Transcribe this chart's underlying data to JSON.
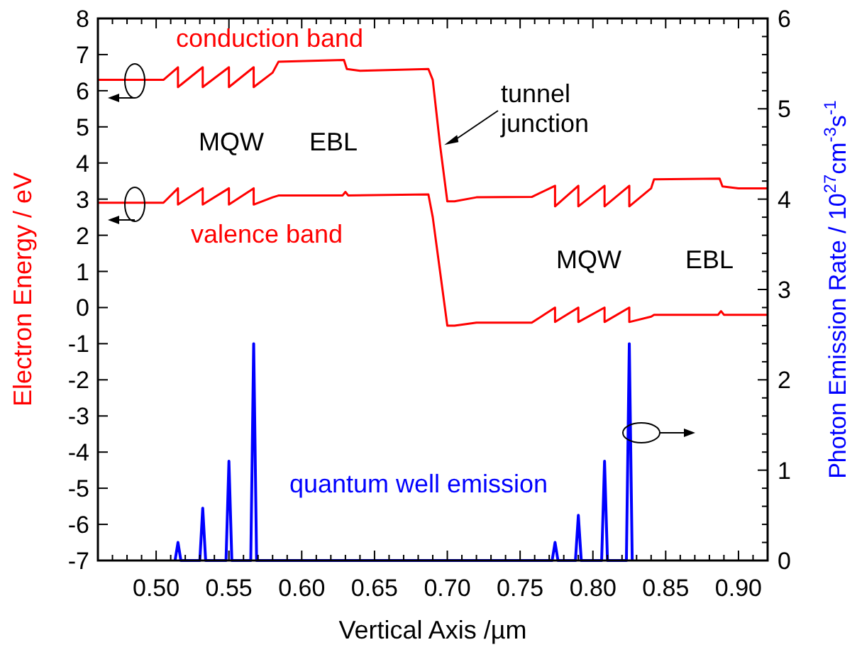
{
  "chart_data": {
    "type": "line",
    "xlabel": "Vertical Axis /µm",
    "ylabel": "Electron Energy / eV",
    "y2label": "Photon Emission Rate / 10$^{27}$cm$^{-3}$s$^{-1}$",
    "xlim": [
      0.46,
      0.92
    ],
    "xticks": [
      {
        "value": 0.46,
        "label": null
      },
      {
        "value": 0.47,
        "label": null
      },
      {
        "value": 0.48,
        "label": null
      },
      {
        "value": 0.49,
        "label": null
      },
      {
        "value": 0.5,
        "label": "0.50"
      },
      {
        "value": 0.51,
        "label": null
      },
      {
        "value": 0.52,
        "label": null
      },
      {
        "value": 0.53,
        "label": null
      },
      {
        "value": 0.54,
        "label": null
      },
      {
        "value": 0.55,
        "label": "0.55"
      },
      {
        "value": 0.56,
        "label": null
      },
      {
        "value": 0.57,
        "label": null
      },
      {
        "value": 0.58,
        "label": null
      },
      {
        "value": 0.59,
        "label": null
      },
      {
        "value": 0.6,
        "label": "0.60"
      },
      {
        "value": 0.61,
        "label": null
      },
      {
        "value": 0.62,
        "label": null
      },
      {
        "value": 0.63,
        "label": null
      },
      {
        "value": 0.64,
        "label": null
      },
      {
        "value": 0.65,
        "label": "0.65"
      },
      {
        "value": 0.66,
        "label": null
      },
      {
        "value": 0.67,
        "label": null
      },
      {
        "value": 0.68,
        "label": null
      },
      {
        "value": 0.69,
        "label": null
      },
      {
        "value": 0.7,
        "label": "0.70"
      },
      {
        "value": 0.71,
        "label": null
      },
      {
        "value": 0.72,
        "label": null
      },
      {
        "value": 0.73,
        "label": null
      },
      {
        "value": 0.74,
        "label": null
      },
      {
        "value": 0.75,
        "label": "0.75"
      },
      {
        "value": 0.76,
        "label": null
      },
      {
        "value": 0.77,
        "label": null
      },
      {
        "value": 0.78,
        "label": null
      },
      {
        "value": 0.79,
        "label": null
      },
      {
        "value": 0.8,
        "label": "0.80"
      },
      {
        "value": 0.81,
        "label": null
      },
      {
        "value": 0.82,
        "label": null
      },
      {
        "value": 0.83,
        "label": null
      },
      {
        "value": 0.84,
        "label": null
      },
      {
        "value": 0.85,
        "label": "0.85"
      },
      {
        "value": 0.86,
        "label": null
      },
      {
        "value": 0.87,
        "label": null
      },
      {
        "value": 0.88,
        "label": null
      },
      {
        "value": 0.89,
        "label": null
      },
      {
        "value": 0.9,
        "label": "0.90"
      },
      {
        "value": 0.91,
        "label": null
      },
      {
        "value": 0.92,
        "label": null
      }
    ],
    "ylim": [
      -7,
      8
    ],
    "yticks": [
      -7,
      -6,
      -5,
      -4,
      -3,
      -2,
      -1,
      0,
      1,
      2,
      3,
      4,
      5,
      6,
      7,
      8
    ],
    "y2lim": [
      0,
      6
    ],
    "y2ticks": [
      0,
      {
        "value": 0.2,
        "label": null
      },
      {
        "value": 0.4,
        "label": null
      },
      {
        "value": 0.6,
        "label": null
      },
      {
        "value": 0.8,
        "label": null
      },
      1,
      {
        "value": 1.2,
        "label": null
      },
      {
        "value": 1.4,
        "label": null
      },
      {
        "value": 1.6,
        "label": null
      },
      {
        "value": 1.8,
        "label": null
      },
      2,
      {
        "value": 2.2,
        "label": null
      },
      {
        "value": 2.4,
        "label": null
      },
      {
        "value": 2.6,
        "label": null
      },
      {
        "value": 2.8,
        "label": null
      },
      3,
      {
        "value": 3.2,
        "label": null
      },
      {
        "value": 3.4,
        "label": null
      },
      {
        "value": 3.6,
        "label": null
      },
      {
        "value": 3.8,
        "label": null
      },
      4,
      {
        "value": 4.2,
        "label": null
      },
      {
        "value": 4.4,
        "label": null
      },
      {
        "value": 4.6,
        "label": null
      },
      {
        "value": 4.8,
        "label": null
      },
      5,
      {
        "value": 5.2,
        "label": null
      },
      {
        "value": 5.4,
        "label": null
      },
      {
        "value": 5.6,
        "label": null
      },
      {
        "value": 5.8,
        "label": null
      },
      6
    ],
    "grid": false,
    "marker": "none",
    "line_style": "solid",
    "series": [
      {
        "name": "conduction band",
        "color": "#ff0000",
        "x": [
          0.46,
          0.505,
          0.515,
          0.515,
          0.532,
          0.532,
          0.55,
          0.55,
          0.567,
          0.567,
          0.58,
          0.584,
          0.629,
          0.631,
          0.64,
          0.687,
          0.69,
          0.695,
          0.7,
          0.705,
          0.72,
          0.758,
          0.774,
          0.774,
          0.79,
          0.79,
          0.808,
          0.808,
          0.825,
          0.825,
          0.84,
          0.842,
          0.887,
          0.889,
          0.9,
          0.92
        ],
        "values": [
          6.3,
          6.3,
          6.65,
          6.1,
          6.65,
          6.1,
          6.65,
          6.1,
          6.65,
          6.1,
          6.5,
          6.8,
          6.85,
          6.6,
          6.55,
          6.6,
          6.3,
          4.5,
          2.94,
          2.94,
          3.05,
          3.06,
          3.37,
          2.8,
          3.37,
          2.8,
          3.37,
          2.8,
          3.37,
          2.8,
          3.3,
          3.55,
          3.57,
          3.35,
          3.3,
          3.3
        ]
      },
      {
        "name": "valence band",
        "color": "#ff0000",
        "x": [
          0.46,
          0.505,
          0.515,
          0.515,
          0.532,
          0.532,
          0.55,
          0.55,
          0.567,
          0.567,
          0.58,
          0.584,
          0.628,
          0.63,
          0.632,
          0.687,
          0.69,
          0.695,
          0.7,
          0.705,
          0.72,
          0.758,
          0.774,
          0.774,
          0.79,
          0.79,
          0.808,
          0.808,
          0.825,
          0.825,
          0.84,
          0.842,
          0.886,
          0.888,
          0.89,
          0.92
        ],
        "values": [
          2.9,
          2.9,
          3.3,
          2.85,
          3.3,
          2.85,
          3.3,
          2.85,
          3.3,
          2.85,
          3.05,
          3.1,
          3.1,
          3.2,
          3.1,
          3.13,
          2.5,
          1,
          -0.5,
          -0.5,
          -0.42,
          -0.42,
          0,
          -0.4,
          0,
          -0.4,
          0,
          -0.4,
          0,
          -0.4,
          -0.25,
          -0.2,
          -0.2,
          -0.1,
          -0.2,
          -0.2
        ]
      },
      {
        "name": "quantum well emission",
        "color": "#0000ff",
        "axis": "y2",
        "x": [
          0.513,
          0.515,
          0.517,
          0.53,
          0.532,
          0.534,
          0.548,
          0.55,
          0.552,
          0.565,
          0.567,
          0.569,
          0.772,
          0.774,
          0.776,
          0.788,
          0.79,
          0.792,
          0.806,
          0.808,
          0.81,
          0.823,
          0.825,
          0.827
        ],
        "values": [
          0,
          0.2,
          0,
          0,
          0.58,
          0,
          0,
          1.1,
          0,
          0,
          2.4,
          0,
          0,
          0.2,
          0,
          0,
          0.5,
          0,
          0,
          1.1,
          0,
          0,
          2.4,
          0
        ]
      }
    ],
    "annotations": [
      "MQW",
      "EBL",
      "MQW",
      "EBL",
      {
        "text": "tunnel junction",
        "x": 0.695,
        "y": 4.5
      }
    ]
  }
}
